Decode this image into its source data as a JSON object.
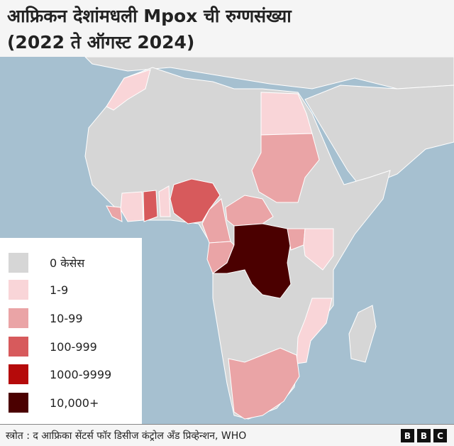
{
  "title": {
    "line1": "आफ्रिकन देशांमधली Mpox ची रुग्णसंख्या",
    "line2": "(2022 ते ऑगस्ट 2024)"
  },
  "legend": [
    {
      "label": "0 केसेस",
      "color": "#d6d6d6"
    },
    {
      "label": "1-9",
      "color": "#f9d5d8"
    },
    {
      "label": "10-99",
      "color": "#eaa4a6"
    },
    {
      "label": "100-999",
      "color": "#d75a5c"
    },
    {
      "label": "1000-9999",
      "color": "#b50a0a"
    },
    {
      "label": "10,000+",
      "color": "#4b0000"
    }
  ],
  "colors": {
    "sea": "#a6c0d0",
    "land": "#d6d6d6",
    "border": "#ffffff"
  },
  "footer": {
    "source": "स्त्रोत : द आफ्रिका सेंटर्स फॉर डिसीज कंट्रोल अँड प्रिव्हेन्शन, WHO",
    "logo": [
      "B",
      "B",
      "C"
    ]
  }
}
